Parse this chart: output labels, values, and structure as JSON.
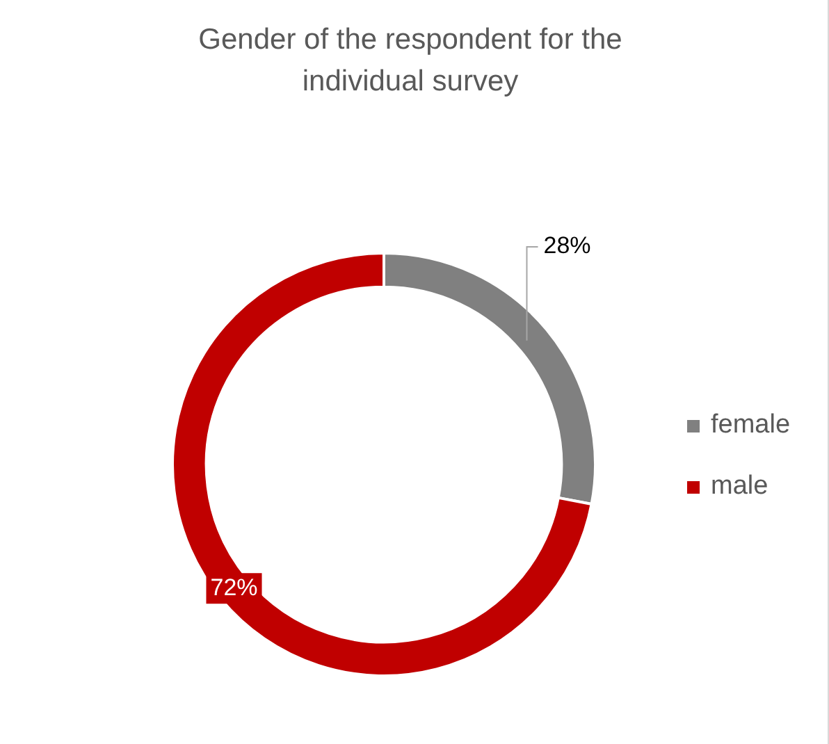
{
  "chart_data": {
    "type": "donut",
    "title": "Gender of the respondent for the individual survey",
    "categories": [
      "female",
      "male"
    ],
    "values": [
      28,
      72
    ],
    "colors": [
      "#808080",
      "#c00000"
    ],
    "value_labels": [
      "28%",
      "72%"
    ],
    "legend": "right"
  }
}
